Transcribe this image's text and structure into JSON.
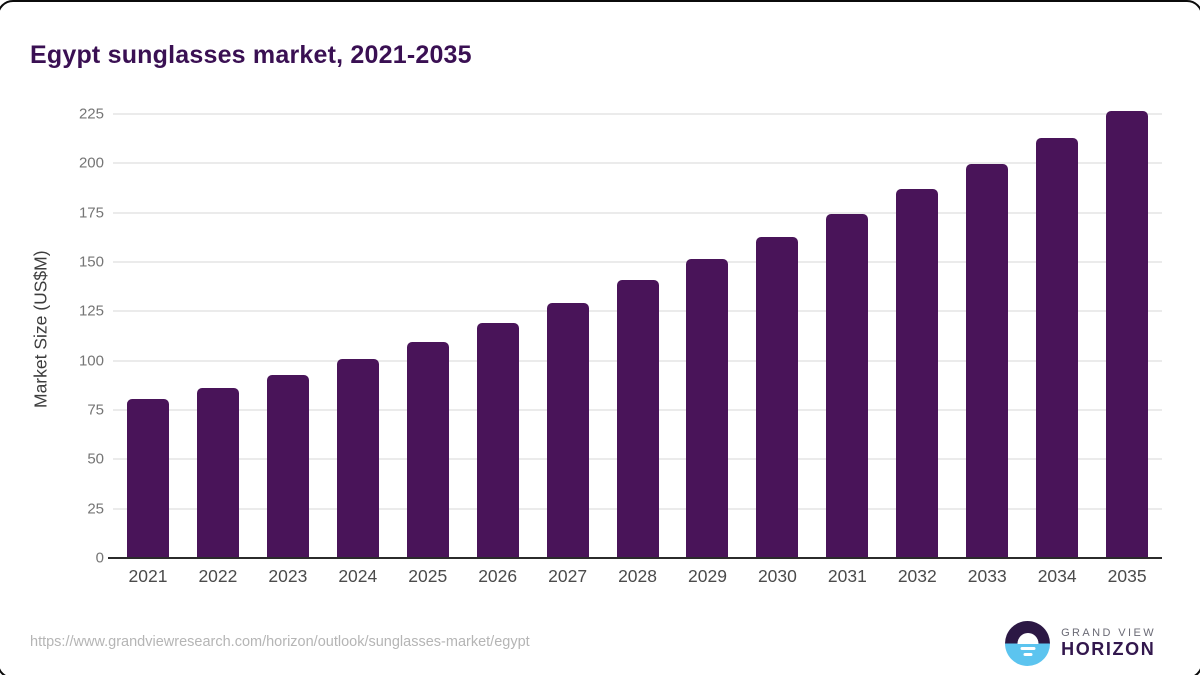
{
  "title": "Egypt sunglasses market, 2021-2035",
  "chart_data": {
    "type": "bar",
    "title": "Egypt sunglasses market, 2021-2035",
    "categories": [
      "2021",
      "2022",
      "2023",
      "2024",
      "2025",
      "2026",
      "2027",
      "2028",
      "2029",
      "2030",
      "2031",
      "2032",
      "2033",
      "2034",
      "2035"
    ],
    "values": [
      80.6,
      86.3,
      92.5,
      100.8,
      109.3,
      119.0,
      129.0,
      140.8,
      151.4,
      162.6,
      174.2,
      186.8,
      199.6,
      212.7,
      226.6
    ],
    "xlabel": "",
    "ylabel": "Market Size (US$M)",
    "ylim": [
      0,
      232
    ],
    "yticks": [
      0,
      25,
      50,
      75,
      100,
      125,
      150,
      175,
      200,
      225
    ],
    "grid": true,
    "legend_position": "none",
    "bar_color": "#491459"
  },
  "footer": {
    "source_url": "https://www.grandviewresearch.com/horizon/outlook/sunglasses-market/egypt",
    "logo": {
      "line1": "GRAND VIEW",
      "line2": "HORIZON"
    }
  },
  "colors": {
    "title": "#3a1053",
    "bar": "#491459",
    "gridline": "#ebebeb",
    "axis_line": "#2b2b2b",
    "tick_label": "#757575",
    "x_label": "#4b4b4b",
    "url_text": "#b5b5b5",
    "logo_dark": "#2c1844",
    "logo_blue": "#5cc4ef",
    "logo_gray": "#6a6a75"
  }
}
